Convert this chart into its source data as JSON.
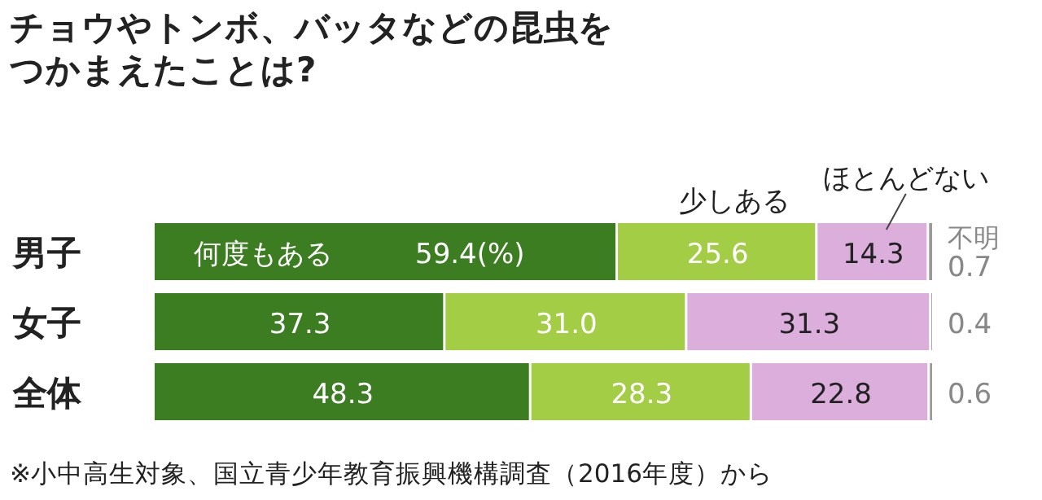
{
  "chart_data": {
    "type": "bar",
    "orientation": "horizontal",
    "stacked": true,
    "title": "チョウやトンボ、バッタなどの昆虫をつかまえたことは?",
    "categories": [
      "男子",
      "女子",
      "全体"
    ],
    "series": [
      {
        "name": "何度もある",
        "color": "#3c7d22",
        "values": [
          59.4,
          37.3,
          48.3
        ],
        "value_labels": [
          "59.4(%)",
          "37.3",
          "48.3"
        ]
      },
      {
        "name": "少しある",
        "color": "#a2cd45",
        "values": [
          25.6,
          31.0,
          28.3
        ],
        "value_labels": [
          "25.6",
          "31.0",
          "28.3"
        ]
      },
      {
        "name": "ほとんどない",
        "color": "#dcaedc",
        "values": [
          14.3,
          31.3,
          22.8
        ],
        "value_labels": [
          "14.3",
          "31.3",
          "22.8"
        ]
      },
      {
        "name": "不明",
        "color": "#9a9a9a",
        "values": [
          0.7,
          0.4,
          0.6
        ],
        "value_labels": [
          "0.7",
          "0.4",
          "0.6"
        ]
      }
    ],
    "annotations": [
      "※小中高生対象、国立青少年教育振興機構調査（2016年度）から"
    ]
  }
}
